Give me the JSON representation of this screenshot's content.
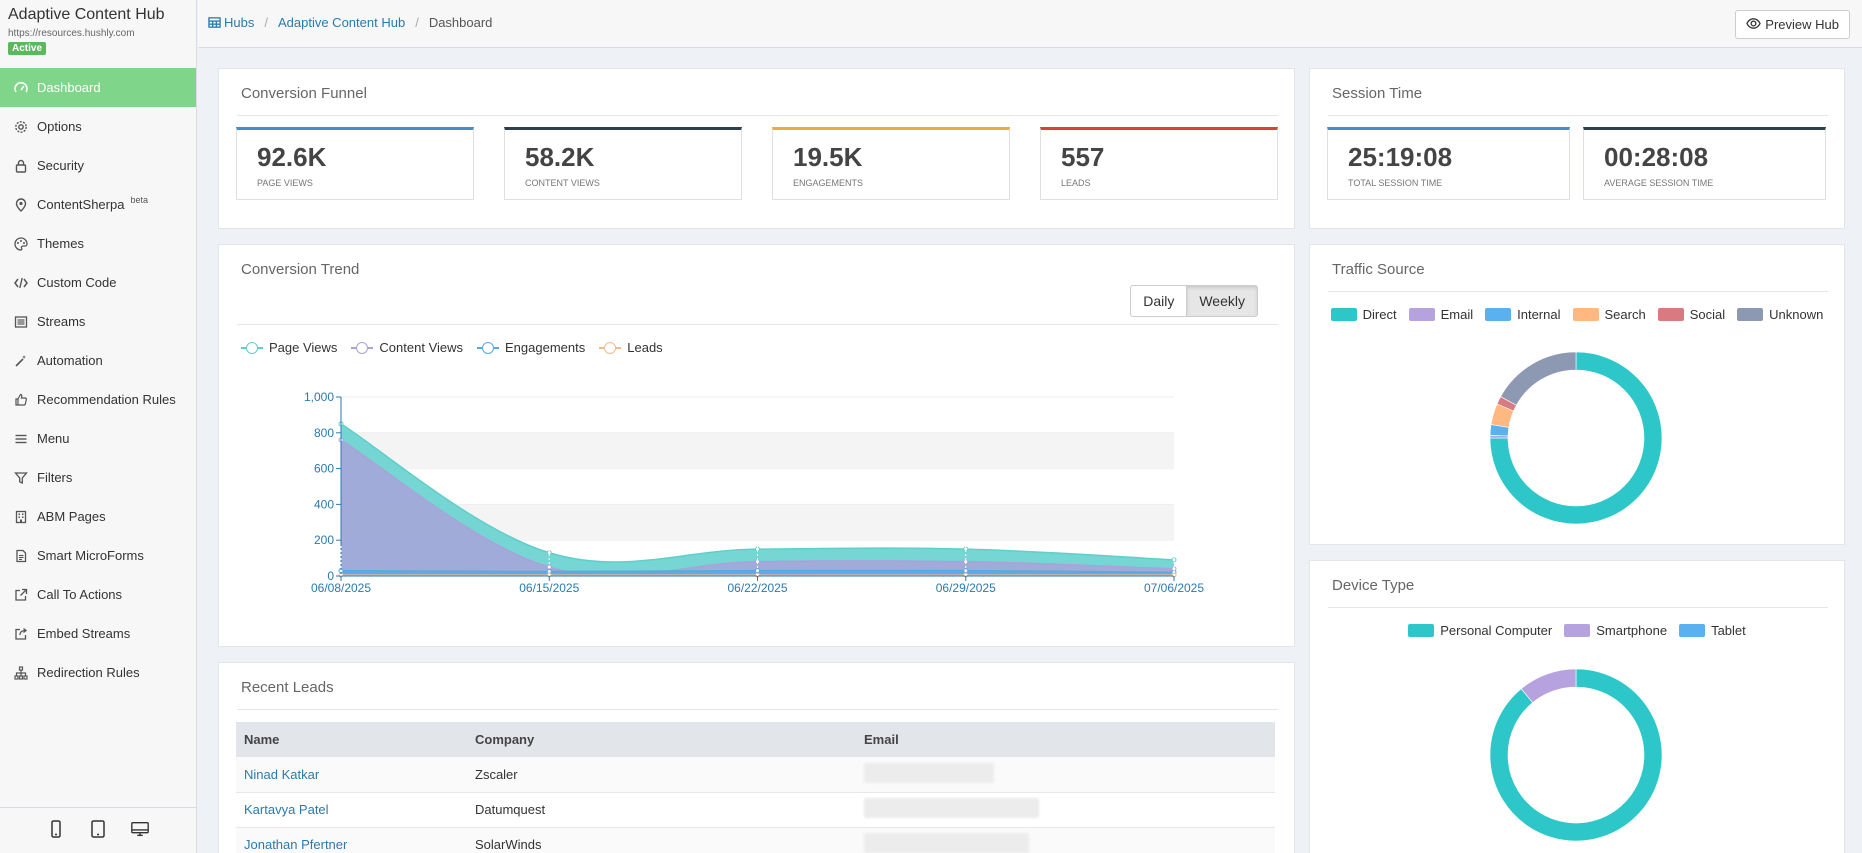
{
  "hub": {
    "title": "Adaptive Content Hub",
    "url": "https://resources.hushly.com",
    "status": "Active"
  },
  "nav": [
    {
      "label": "Dashboard",
      "icon": "dashboard-icon"
    },
    {
      "label": "Options",
      "icon": "gear-icon"
    },
    {
      "label": "Security",
      "icon": "lock-icon"
    },
    {
      "label": "ContentSherpa",
      "icon": "sherpa-icon",
      "badge": "beta"
    },
    {
      "label": "Themes",
      "icon": "palette-icon"
    },
    {
      "label": "Custom Code",
      "icon": "code-icon"
    },
    {
      "label": "Streams",
      "icon": "streams-icon"
    },
    {
      "label": "Automation",
      "icon": "magic-wand-icon"
    },
    {
      "label": "Recommendation Rules",
      "icon": "thumbs-up-icon"
    },
    {
      "label": "Menu",
      "icon": "menu-icon"
    },
    {
      "label": "Filters",
      "icon": "filter-icon"
    },
    {
      "label": "ABM Pages",
      "icon": "building-icon"
    },
    {
      "label": "Smart MicroForms",
      "icon": "form-icon"
    },
    {
      "label": "Call To Actions",
      "icon": "external-link-icon"
    },
    {
      "label": "Embed Streams",
      "icon": "share-icon"
    },
    {
      "label": "Redirection Rules",
      "icon": "sitemap-icon"
    }
  ],
  "device_icons": [
    "smartphone-icon",
    "tablet-icon",
    "desktop-icon"
  ],
  "breadcrumb": {
    "hubs": "Hubs",
    "hub": "Adaptive Content Hub",
    "current": "Dashboard"
  },
  "preview_label": "Preview Hub",
  "funnel": {
    "title": "Conversion Funnel",
    "stats": [
      {
        "value": "92.6K",
        "label": "Page Views",
        "color": "#3d8fd0"
      },
      {
        "value": "58.2K",
        "label": "Content Views",
        "color": "#2f3e4b"
      },
      {
        "value": "19.5K",
        "label": "Engagements",
        "color": "#f0a93b"
      },
      {
        "value": "557",
        "label": "Leads",
        "color": "#d9432f"
      }
    ]
  },
  "session": {
    "title": "Session Time",
    "stats": [
      {
        "value": "25:19:08",
        "label": "Total Session Time",
        "color": "#3d8fd0"
      },
      {
        "value": "00:28:08",
        "label": "Average Session Time",
        "color": "#2f3e4b"
      }
    ]
  },
  "trend": {
    "title": "Conversion Trend",
    "toggle": {
      "daily": "Daily",
      "weekly": "Weekly",
      "selected": "Weekly"
    }
  },
  "traffic": {
    "title": "Traffic Source"
  },
  "device": {
    "title": "Device Type"
  },
  "leads": {
    "title": "Recent Leads",
    "columns": [
      "Name",
      "Company",
      "Email"
    ],
    "rows": [
      {
        "name": "Ninad Katkar",
        "company": "Zscaler"
      },
      {
        "name": "Kartavya Patel",
        "company": "Datumquest"
      },
      {
        "name": "Jonathan Pfertner",
        "company": "SolarWinds"
      }
    ]
  },
  "chart_data": [
    {
      "type": "area",
      "title": "Conversion Trend",
      "x": [
        "06/08/2025",
        "06/15/2025",
        "06/22/2025",
        "06/29/2025",
        "07/06/2025"
      ],
      "ylim": [
        0,
        1000
      ],
      "yticks": [
        0,
        200,
        400,
        600,
        800,
        1000
      ],
      "series": [
        {
          "name": "Page Views",
          "color": "#5ecfcb",
          "values": [
            850,
            130,
            150,
            150,
            90
          ]
        },
        {
          "name": "Content Views",
          "color": "#a8a3d9",
          "values": [
            760,
            50,
            80,
            80,
            40
          ]
        },
        {
          "name": "Engagements",
          "color": "#56a9e6",
          "values": [
            30,
            25,
            30,
            30,
            20
          ]
        },
        {
          "name": "Leads",
          "color": "#f7b989",
          "values": [
            5,
            5,
            5,
            5,
            5
          ]
        }
      ]
    },
    {
      "type": "pie",
      "title": "Traffic Source",
      "labels": [
        "Direct",
        "Email",
        "Internal",
        "Search",
        "Social",
        "Unknown"
      ],
      "values": [
        75,
        0.5,
        2,
        4,
        1.5,
        17
      ],
      "colors": [
        "#2ec7c9",
        "#b6a2de",
        "#5ab1ef",
        "#ffb980",
        "#d87a80",
        "#8d98b3"
      ]
    },
    {
      "type": "pie",
      "title": "Device Type",
      "labels": [
        "Personal Computer",
        "Smartphone",
        "Tablet"
      ],
      "values": [
        89,
        11,
        0
      ],
      "colors": [
        "#2ec7c9",
        "#b6a2de",
        "#5ab1ef"
      ]
    }
  ]
}
